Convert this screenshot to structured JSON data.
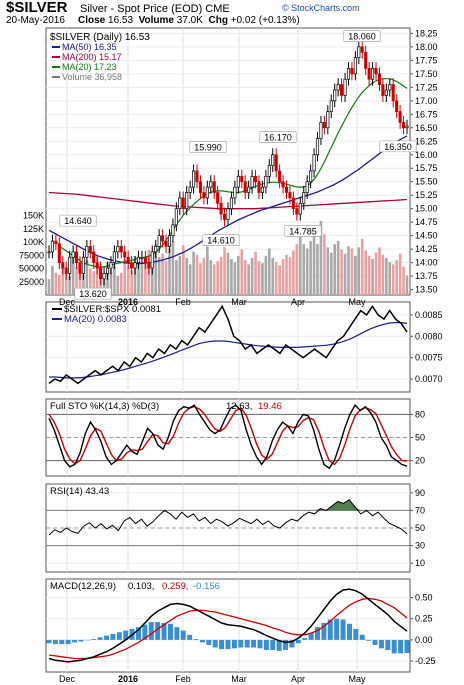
{
  "header": {
    "symbol": "$SILVER",
    "description": "Silver - Spot Price (EOD)  CME",
    "source": "© StockCharts.com",
    "date": "20-May-2016",
    "close_label": "Close",
    "close": "16.53",
    "volume_label": "Volume",
    "volume": "37.0K",
    "chg_label": "Chg",
    "chg": "+0.02 (+0.13%)"
  },
  "colors": {
    "up": "#000000",
    "down": "#cc0000",
    "ma50": "#1c1c8c",
    "ma200": "#b0003a",
    "ma20": "#137a13",
    "volume_up": "#a8a8a8",
    "volume_down": "#e8a0a0",
    "macd_hist": "#3a8fd0",
    "rsi_fill": "#2e6b2e"
  },
  "chart_data": [
    {
      "type": "candlestick",
      "id": "price",
      "legend": [
        "$SILVER (Daily) 16.53",
        "MA(50) 16.35",
        "MA(200) 15.17",
        "MA(20) 17.23",
        "Volume 36,958"
      ],
      "y_ticks": [
        "18.25",
        "18.00",
        "17.75",
        "17.50",
        "17.25",
        "17.00",
        "16.75",
        "16.50",
        "16.25",
        "16.00",
        "15.75",
        "15.50",
        "15.25",
        "15.00",
        "14.75",
        "14.50",
        "14.25",
        "14.00",
        "13.75",
        "13.50"
      ],
      "volume_ticks": [
        "150K",
        "125K",
        "100K",
        "75000",
        "50000",
        "25000"
      ],
      "x_labels": [
        "Dec",
        "2016",
        "Feb",
        "Mar",
        "Apr",
        "May"
      ],
      "ylim": [
        13.4,
        18.35
      ],
      "annotations": [
        {
          "label": "18.060",
          "value": 18.06
        },
        {
          "label": "16.170",
          "value": 16.17
        },
        {
          "label": "15.990",
          "value": 15.99
        },
        {
          "label": "16.350",
          "value": 16.35
        },
        {
          "label": "14.640",
          "value": 14.64
        },
        {
          "label": "14.610",
          "value": 14.61
        },
        {
          "label": "14.785",
          "value": 14.785
        },
        {
          "label": "13.620",
          "value": 13.62
        }
      ],
      "close": [
        14.2,
        14.4,
        14.35,
        14.0,
        13.9,
        13.8,
        14.1,
        14.2,
        14.0,
        13.8,
        14.1,
        14.3,
        14.2,
        14.0,
        13.9,
        13.7,
        13.8,
        13.9,
        14.0,
        14.2,
        14.3,
        14.2,
        14.1,
        14.0,
        13.9,
        14.0,
        14.1,
        14.1,
        14.0,
        13.9,
        14.2,
        14.3,
        14.5,
        14.4,
        14.3,
        14.5,
        14.7,
        15.0,
        15.2,
        15.0,
        15.3,
        15.4,
        15.7,
        15.5,
        15.3,
        15.2,
        15.4,
        15.5,
        15.3,
        15.1,
        14.9,
        14.8,
        15.0,
        15.2,
        15.4,
        15.6,
        15.5,
        15.3,
        15.4,
        15.6,
        15.5,
        15.3,
        15.4,
        15.6,
        15.8,
        16.0,
        15.7,
        15.5,
        15.4,
        15.3,
        15.2,
        15.0,
        14.9,
        15.1,
        15.3,
        15.5,
        15.7,
        16.0,
        16.3,
        16.6,
        16.5,
        16.8,
        17.0,
        17.2,
        17.3,
        17.1,
        17.4,
        17.6,
        17.5,
        17.8,
        18.0,
        17.9,
        17.6,
        17.4,
        17.6,
        17.5,
        17.3,
        17.1,
        17.2,
        17.3,
        17.0,
        16.8,
        16.6,
        16.5,
        16.53
      ],
      "ma20": [
        14.3,
        14.25,
        14.2,
        14.15,
        14.1,
        14.05,
        14.0,
        13.97,
        13.95,
        13.93,
        13.92,
        13.92,
        13.93,
        13.95,
        13.97,
        13.99,
        14.0,
        14.02,
        14.03,
        14.05,
        14.07,
        14.08,
        14.1,
        14.12,
        14.15,
        14.2,
        14.27,
        14.36,
        14.46,
        14.57,
        14.68,
        14.78,
        14.88,
        14.96,
        15.03,
        15.1,
        15.16,
        15.22,
        15.27,
        15.3,
        15.32,
        15.33,
        15.33,
        15.32,
        15.31,
        15.3,
        15.3,
        15.31,
        15.33,
        15.36,
        15.39,
        15.42,
        15.45,
        15.47,
        15.48,
        15.49,
        15.49,
        15.48,
        15.47,
        15.45,
        15.43,
        15.41,
        15.4,
        15.4,
        15.42,
        15.47,
        15.55,
        15.66,
        15.79,
        15.93,
        16.08,
        16.23,
        16.38,
        16.52,
        16.66,
        16.79,
        16.91,
        17.02,
        17.12,
        17.2,
        17.27,
        17.33,
        17.37,
        17.4,
        17.41,
        17.41,
        17.4,
        17.37,
        17.33,
        17.28,
        17.23
      ],
      "ma50": [
        14.6,
        14.55,
        14.5,
        14.45,
        14.4,
        14.35,
        14.3,
        14.25,
        14.2,
        14.16,
        14.12,
        14.09,
        14.06,
        14.04,
        14.02,
        14.0,
        13.99,
        13.98,
        13.98,
        13.99,
        14.0,
        14.01,
        14.03,
        14.05,
        14.08,
        14.11,
        14.15,
        14.19,
        14.24,
        14.29,
        14.35,
        14.41,
        14.47,
        14.53,
        14.59,
        14.64,
        14.69,
        14.74,
        14.79,
        14.83,
        14.87,
        14.91,
        14.95,
        14.98,
        15.01,
        15.04,
        15.07,
        15.1,
        15.13,
        15.16,
        15.19,
        15.22,
        15.25,
        15.28,
        15.31,
        15.35,
        15.39,
        15.43,
        15.48,
        15.53,
        15.59,
        15.65,
        15.71,
        15.78,
        15.85,
        15.92,
        15.99,
        16.06,
        16.13,
        16.19,
        16.25,
        16.3,
        16.35
      ],
      "ma200": [
        15.3,
        15.29,
        15.28,
        15.27,
        15.25,
        15.23,
        15.21,
        15.19,
        15.17,
        15.15,
        15.13,
        15.11,
        15.09,
        15.07,
        15.05,
        15.04,
        15.03,
        15.02,
        15.01,
        15.0,
        15.0,
        15.0,
        15.0,
        15.0,
        15.01,
        15.02,
        15.03,
        15.04,
        15.05,
        15.06,
        15.07,
        15.08,
        15.09,
        15.1,
        15.11,
        15.12,
        15.13,
        15.14,
        15.15,
        15.16,
        15.17
      ],
      "volume": [
        30,
        55,
        42,
        38,
        60,
        48,
        35,
        70,
        52,
        44,
        38,
        66,
        50,
        45,
        72,
        58,
        40,
        62,
        48,
        55,
        36,
        42,
        68,
        52,
        46,
        74,
        58,
        62,
        70,
        85,
        60,
        96,
        72,
        78,
        64,
        88,
        102,
        66,
        74,
        94,
        70,
        58,
        82,
        76,
        60,
        70,
        92,
        66,
        58,
        64,
        72,
        90,
        80,
        68,
        62,
        74,
        86,
        66,
        58,
        70,
        82,
        64,
        60,
        74,
        88,
        70,
        62,
        56,
        68,
        76,
        72,
        84,
        96,
        110,
        96,
        88,
        102,
        120,
        96,
        140,
        115,
        90,
        80,
        96,
        102,
        86,
        78,
        92,
        88,
        74,
        90,
        106,
        84,
        74,
        68,
        80,
        90,
        76,
        70,
        62,
        58,
        66,
        78,
        54,
        37
      ]
    },
    {
      "type": "line",
      "id": "ratio",
      "legend": [
        "$SILVER:$SPX 0.0081",
        "MA(20) 0.0083"
      ],
      "y_ticks": [
        "0.0085",
        "0.0080",
        "0.0075",
        "0.0070"
      ],
      "ylim": [
        0.0067,
        0.0088
      ],
      "values": [
        0.0069,
        0.007,
        0.00695,
        0.0071,
        0.007,
        0.0069,
        0.007,
        0.0071,
        0.0072,
        0.0071,
        0.0072,
        0.0073,
        0.0072,
        0.0074,
        0.0073,
        0.0075,
        0.0074,
        0.0076,
        0.0075,
        0.0077,
        0.0076,
        0.0078,
        0.0077,
        0.0079,
        0.0078,
        0.008,
        0.0082,
        0.0081,
        0.0083,
        0.0085,
        0.0087,
        0.0084,
        0.008,
        0.0079,
        0.0077,
        0.0078,
        0.0076,
        0.0077,
        0.0078,
        0.0077,
        0.0076,
        0.0078,
        0.0077,
        0.0076,
        0.0075,
        0.0076,
        0.0077,
        0.0076,
        0.0075,
        0.0077,
        0.0079,
        0.008,
        0.0082,
        0.0084,
        0.0086,
        0.0085,
        0.0087,
        0.0085,
        0.0084,
        0.0086,
        0.0084,
        0.0083,
        0.0081
      ],
      "ma": [
        0.00705,
        0.00705,
        0.00704,
        0.00703,
        0.00703,
        0.00703,
        0.00704,
        0.00706,
        0.00708,
        0.0071,
        0.00713,
        0.00716,
        0.00719,
        0.00722,
        0.00726,
        0.0073,
        0.00734,
        0.00738,
        0.00742,
        0.00747,
        0.00752,
        0.00757,
        0.00762,
        0.00768,
        0.00773,
        0.00778,
        0.00783,
        0.00786,
        0.00788,
        0.00789,
        0.00789,
        0.00788,
        0.00786,
        0.00784,
        0.00782,
        0.0078,
        0.00778,
        0.00777,
        0.00776,
        0.00775,
        0.00774,
        0.00774,
        0.00774,
        0.00774,
        0.00775,
        0.00776,
        0.00777,
        0.00778,
        0.00779,
        0.00781,
        0.00784,
        0.00788,
        0.00793,
        0.00799,
        0.00806,
        0.00813,
        0.00819,
        0.00824,
        0.00828,
        0.00831,
        0.00832,
        0.00832,
        0.0083
      ]
    },
    {
      "type": "line",
      "id": "sto",
      "legend": [
        "Full STO %K(14,3) %D(3) 12.63, 19.46"
      ],
      "legend_parts": {
        "label": "Full STO %K(14,3) %D(3)",
        "k": "12.63",
        "d": "19.46"
      },
      "y_ticks": [
        "80",
        "50",
        "20"
      ],
      "ylim": [
        0,
        100
      ],
      "k": [
        75,
        60,
        40,
        20,
        12,
        15,
        30,
        55,
        70,
        60,
        45,
        25,
        15,
        20,
        30,
        40,
        32,
        28,
        45,
        62,
        55,
        40,
        35,
        50,
        72,
        85,
        90,
        88,
        92,
        80,
        70,
        60,
        55,
        60,
        75,
        88,
        92,
        85,
        60,
        40,
        25,
        15,
        25,
        45,
        60,
        70,
        65,
        55,
        70,
        80,
        78,
        60,
        35,
        15,
        10,
        20,
        40,
        62,
        80,
        92,
        85,
        90,
        82,
        70,
        50,
        40,
        25,
        20,
        15,
        12.63
      ],
      "d": [
        80,
        70,
        55,
        35,
        22,
        16,
        20,
        35,
        52,
        62,
        58,
        43,
        28,
        20,
        22,
        30,
        34,
        33,
        35,
        45,
        54,
        52,
        43,
        42,
        52,
        69,
        82,
        88,
        90,
        87,
        80,
        70,
        61,
        58,
        63,
        74,
        85,
        88,
        79,
        62,
        42,
        27,
        22,
        28,
        43,
        58,
        65,
        63,
        64,
        72,
        76,
        73,
        58,
        37,
        20,
        15,
        23,
        40,
        61,
        78,
        86,
        89,
        86,
        81,
        67,
        53,
        38,
        28,
        20,
        19.46
      ]
    },
    {
      "type": "line",
      "id": "rsi",
      "legend": [
        "RSI(14) 43.43"
      ],
      "y_ticks": [
        "90",
        "70",
        "50",
        "30",
        "10"
      ],
      "ylim": [
        0,
        100
      ],
      "values": [
        42,
        48,
        45,
        50,
        46,
        44,
        52,
        56,
        50,
        55,
        49,
        53,
        47,
        58,
        62,
        55,
        60,
        52,
        57,
        64,
        70,
        66,
        60,
        68,
        62,
        66,
        58,
        62,
        55,
        60,
        57,
        52,
        56,
        61,
        58,
        55,
        60,
        54,
        58,
        52,
        50,
        56,
        60,
        58,
        64,
        68,
        66,
        72,
        70,
        75,
        80,
        78,
        82,
        74,
        66,
        70,
        64,
        68,
        61,
        55,
        52,
        49,
        43.43
      ]
    },
    {
      "type": "bar",
      "id": "macd",
      "legend": [
        "MACD(12,26,9) 0.103, 0.259, -0.156"
      ],
      "legend_parts": {
        "label": "MACD(12,26,9)",
        "macd": "0.103",
        "signal": "0.259",
        "hist": "-0.156"
      },
      "y_ticks": [
        "0.50",
        "0.25",
        "0.00",
        "-0.25"
      ],
      "x_labels": [
        "Dec",
        "2016",
        "Feb",
        "Mar",
        "Apr",
        "May"
      ],
      "ylim": [
        -0.38,
        0.72
      ],
      "macd": [
        -0.22,
        -0.24,
        -0.25,
        -0.26,
        -0.25,
        -0.24,
        -0.22,
        -0.2,
        -0.17,
        -0.14,
        -0.1,
        -0.05,
        0.0,
        0.06,
        0.12,
        0.2,
        0.28,
        0.34,
        0.38,
        0.42,
        0.43,
        0.42,
        0.4,
        0.36,
        0.32,
        0.28,
        0.24,
        0.2,
        0.18,
        0.17,
        0.16,
        0.14,
        0.12,
        0.09,
        0.05,
        0.02,
        -0.01,
        -0.03,
        -0.02,
        0.02,
        0.08,
        0.16,
        0.26,
        0.36,
        0.46,
        0.54,
        0.59,
        0.6,
        0.58,
        0.54,
        0.48,
        0.42,
        0.36,
        0.3,
        0.22,
        0.16,
        0.103
      ],
      "signal": [
        -0.18,
        -0.19,
        -0.2,
        -0.21,
        -0.22,
        -0.22,
        -0.22,
        -0.21,
        -0.2,
        -0.19,
        -0.17,
        -0.14,
        -0.11,
        -0.07,
        -0.03,
        0.02,
        0.07,
        0.13,
        0.18,
        0.23,
        0.28,
        0.31,
        0.34,
        0.35,
        0.35,
        0.34,
        0.33,
        0.31,
        0.29,
        0.27,
        0.25,
        0.23,
        0.21,
        0.19,
        0.17,
        0.14,
        0.12,
        0.09,
        0.07,
        0.06,
        0.06,
        0.08,
        0.11,
        0.16,
        0.22,
        0.29,
        0.35,
        0.41,
        0.45,
        0.48,
        0.49,
        0.48,
        0.46,
        0.42,
        0.38,
        0.32,
        0.259
      ]
    }
  ]
}
